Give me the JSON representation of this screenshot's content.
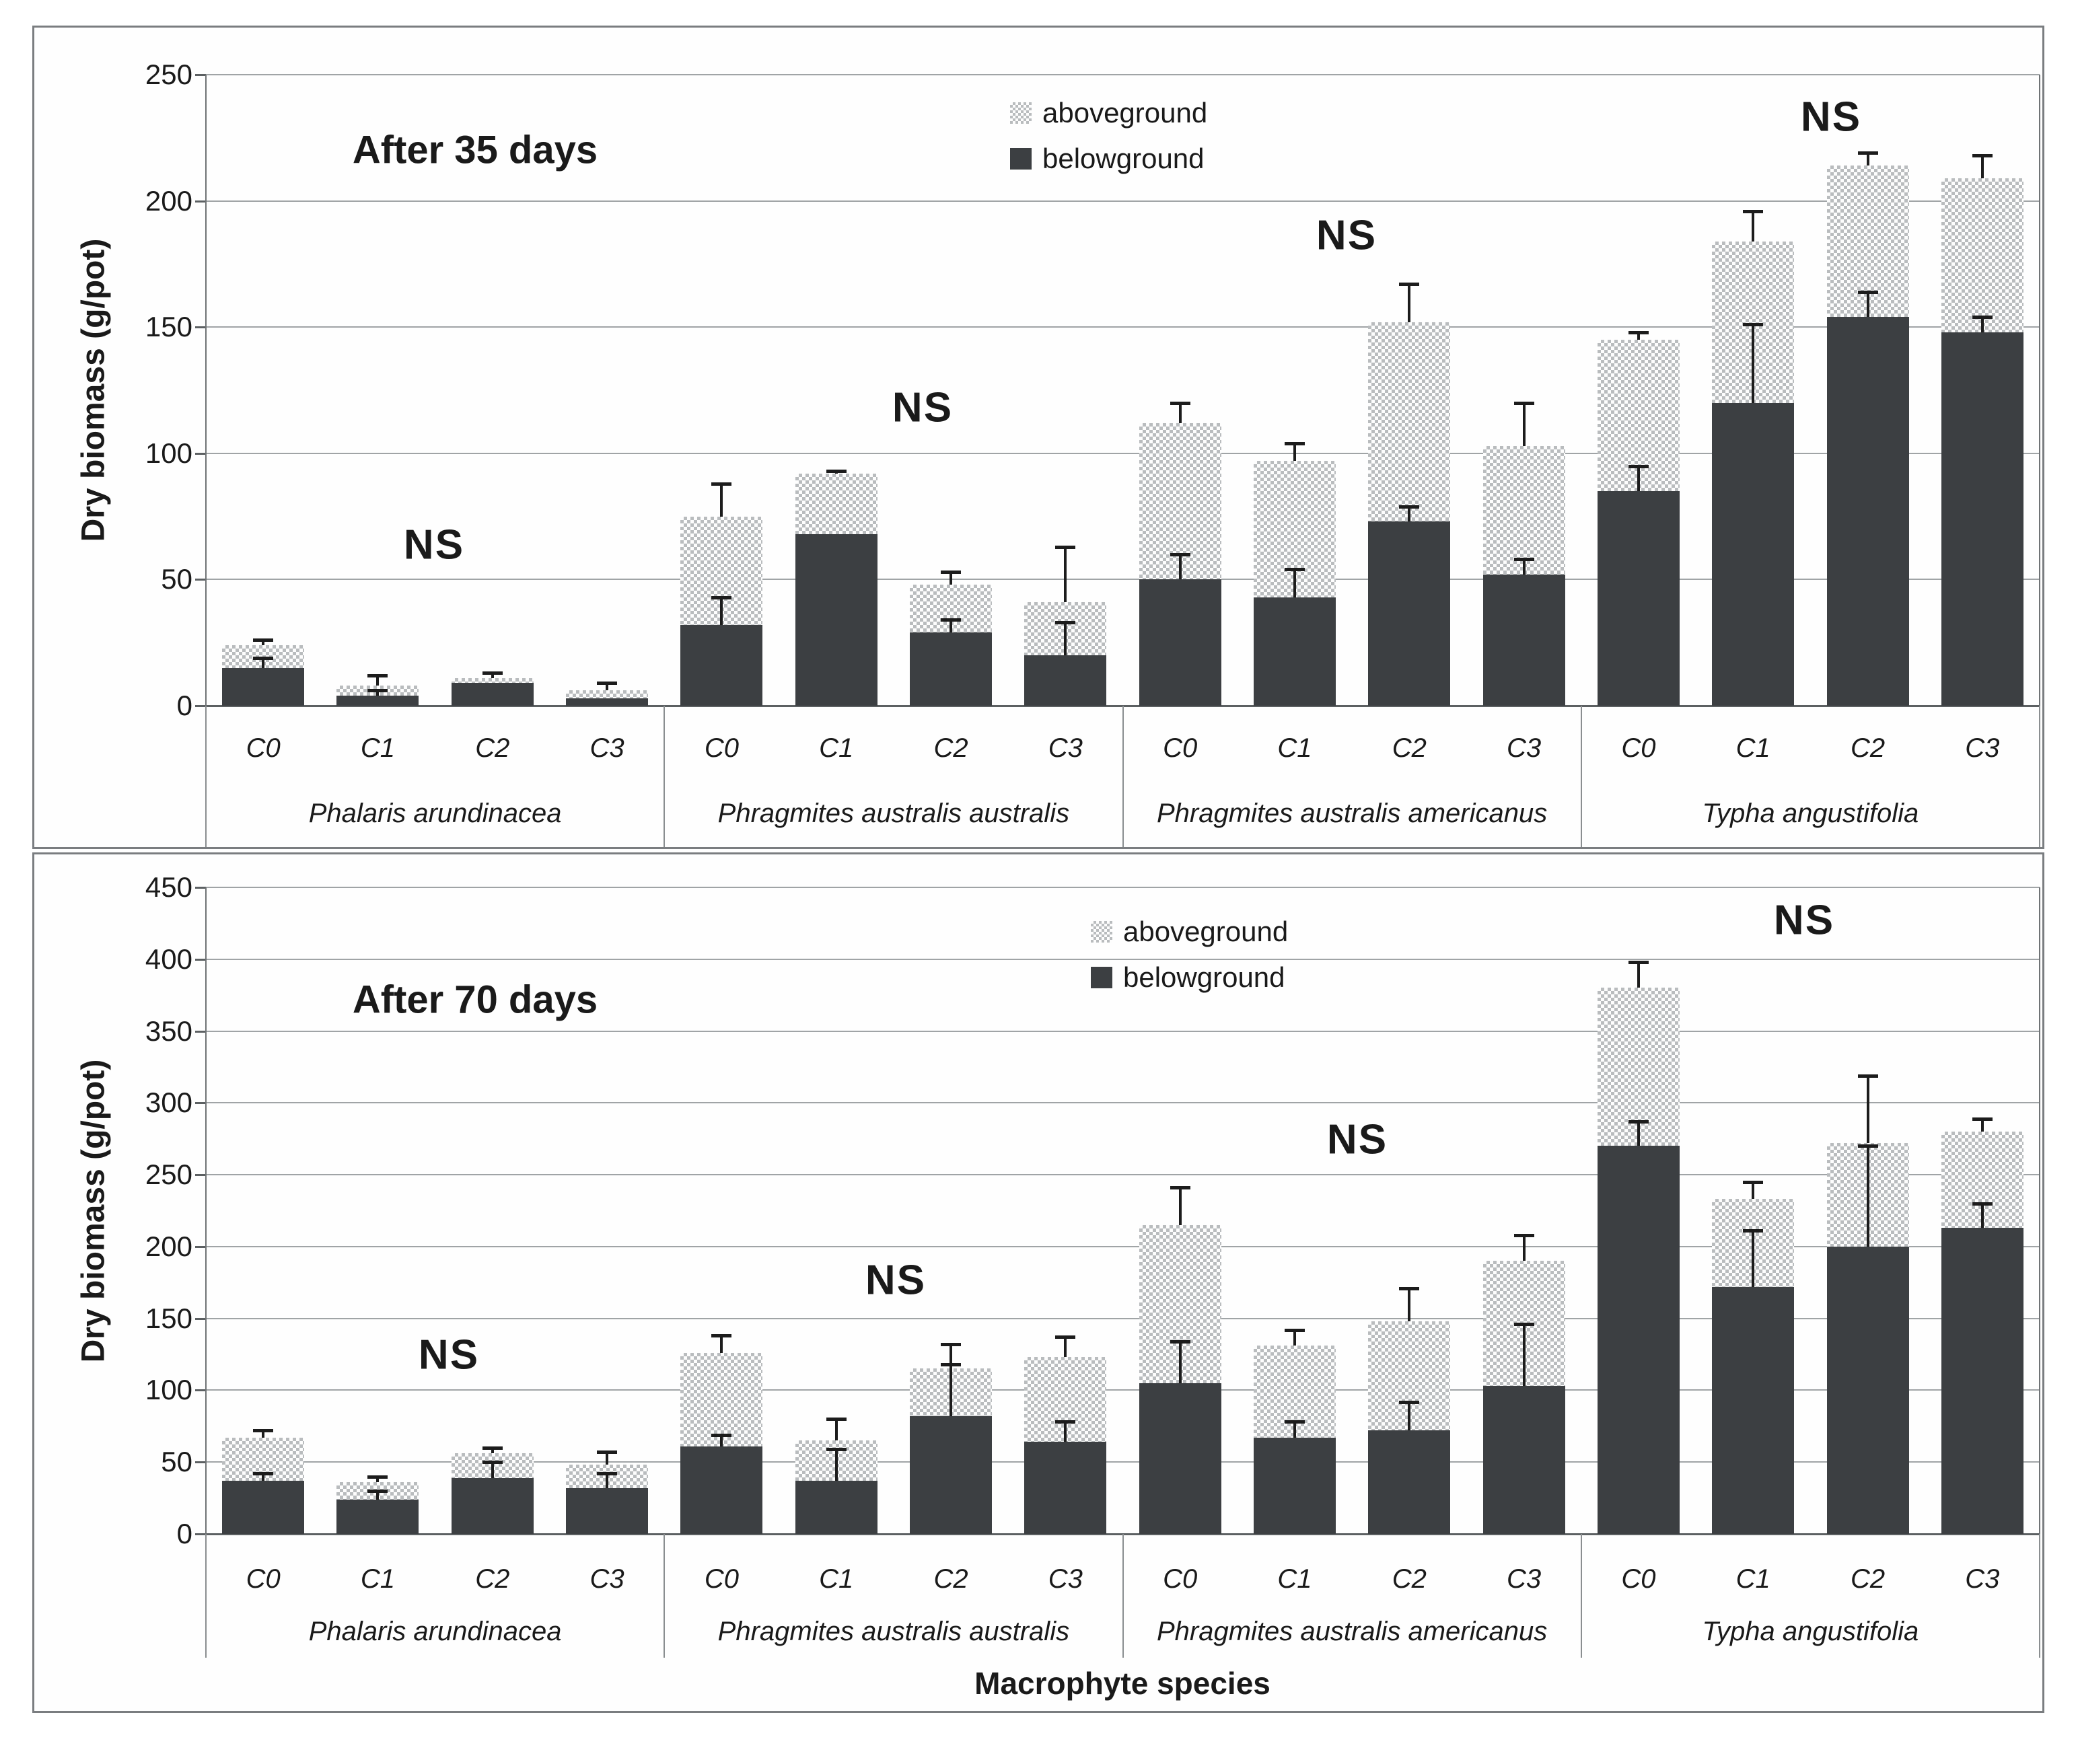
{
  "figure": {
    "x_axis_title": "Macrophyte species",
    "ns_label": "NS",
    "colors": {
      "belowground": "#3c3f42",
      "aboveground_hatch_dot": "#b9bcbe",
      "gridline": "#a0a4a6",
      "axis": "#5c6062",
      "error_bar": "#1c1c1c",
      "panel_border": "#7a7d80",
      "text": "#1a1a1a"
    }
  },
  "chart_data": [
    {
      "type": "bar",
      "stacked": true,
      "title": "After 35 days",
      "ylabel": "Dry biomass (g/pot)",
      "xlabel": "",
      "ylim": [
        0,
        250
      ],
      "y_tick_step": 50,
      "grid": true,
      "legend_position": "top-center-inside",
      "legend": [
        {
          "label": "aboveground",
          "style": "hatch"
        },
        {
          "label": "belowground",
          "style": "solid"
        }
      ],
      "categories": [
        "C0",
        "C1",
        "C2",
        "C3"
      ],
      "units": "g/pot",
      "groups": [
        {
          "species": "Phalaris arundinacea",
          "ns": "NS",
          "bars": [
            {
              "label": "C0",
              "belowground": 15,
              "aboveground": 9,
              "err_below_top": 19,
              "err_total_top": 26
            },
            {
              "label": "C1",
              "belowground": 4,
              "aboveground": 4,
              "err_below_top": 6,
              "err_total_top": 12
            },
            {
              "label": "C2",
              "belowground": 9,
              "aboveground": 2,
              "err_below_top": null,
              "err_total_top": 13
            },
            {
              "label": "C3",
              "belowground": 3,
              "aboveground": 3,
              "err_below_top": null,
              "err_total_top": 9
            }
          ]
        },
        {
          "species": "Phragmites australis australis",
          "ns": "NS",
          "bars": [
            {
              "label": "C0",
              "belowground": 32,
              "aboveground": 43,
              "err_below_top": 43,
              "err_total_top": 88
            },
            {
              "label": "C1",
              "belowground": 68,
              "aboveground": 24,
              "err_below_top": null,
              "err_total_top": 93
            },
            {
              "label": "C2",
              "belowground": 29,
              "aboveground": 19,
              "err_below_top": 34,
              "err_total_top": 53
            },
            {
              "label": "C3",
              "belowground": 20,
              "aboveground": 21,
              "err_below_top": 33,
              "err_total_top": 63
            }
          ]
        },
        {
          "species": "Phragmites australis americanus",
          "ns": "NS",
          "bars": [
            {
              "label": "C0",
              "belowground": 50,
              "aboveground": 62,
              "err_below_top": 60,
              "err_total_top": 120
            },
            {
              "label": "C1",
              "belowground": 43,
              "aboveground": 54,
              "err_below_top": 54,
              "err_total_top": 104
            },
            {
              "label": "C2",
              "belowground": 73,
              "aboveground": 79,
              "err_below_top": 79,
              "err_total_top": 167
            },
            {
              "label": "C3",
              "belowground": 52,
              "aboveground": 51,
              "err_below_top": 58,
              "err_total_top": 120
            }
          ]
        },
        {
          "species": "Typha angustifolia",
          "ns": "NS",
          "bars": [
            {
              "label": "C0",
              "belowground": 85,
              "aboveground": 60,
              "err_below_top": 95,
              "err_total_top": 148
            },
            {
              "label": "C1",
              "belowground": 120,
              "aboveground": 64,
              "err_below_top": 151,
              "err_total_top": 196
            },
            {
              "label": "C2",
              "belowground": 154,
              "aboveground": 60,
              "err_below_top": 164,
              "err_total_top": 219
            },
            {
              "label": "C3",
              "belowground": 148,
              "aboveground": 61,
              "err_below_top": 154,
              "err_total_top": 218
            }
          ]
        }
      ]
    },
    {
      "type": "bar",
      "stacked": true,
      "title": "After 70 days",
      "ylabel": "Dry biomass (g/pot)",
      "xlabel": "Macrophyte species",
      "ylim": [
        0,
        450
      ],
      "y_tick_step": 50,
      "grid": true,
      "legend_position": "top-center-inside",
      "legend": [
        {
          "label": "aboveground",
          "style": "hatch"
        },
        {
          "label": "belowground",
          "style": "solid"
        }
      ],
      "categories": [
        "C0",
        "C1",
        "C2",
        "C3"
      ],
      "units": "g/pot",
      "groups": [
        {
          "species": "Phalaris arundinacea",
          "ns": "NS",
          "bars": [
            {
              "label": "C0",
              "belowground": 37,
              "aboveground": 30,
              "err_below_top": 42,
              "err_total_top": 72
            },
            {
              "label": "C1",
              "belowground": 24,
              "aboveground": 12,
              "err_below_top": 30,
              "err_total_top": 40
            },
            {
              "label": "C2",
              "belowground": 39,
              "aboveground": 17,
              "err_below_top": 50,
              "err_total_top": 60
            },
            {
              "label": "C3",
              "belowground": 32,
              "aboveground": 16,
              "err_below_top": 42,
              "err_total_top": 57
            }
          ]
        },
        {
          "species": "Phragmites australis australis",
          "ns": "NS",
          "bars": [
            {
              "label": "C0",
              "belowground": 61,
              "aboveground": 65,
              "err_below_top": 69,
              "err_total_top": 138
            },
            {
              "label": "C1",
              "belowground": 37,
              "aboveground": 28,
              "err_below_top": 59,
              "err_total_top": 80
            },
            {
              "label": "C2",
              "belowground": 82,
              "aboveground": 33,
              "err_below_top": 118,
              "err_total_top": 132
            },
            {
              "label": "C3",
              "belowground": 64,
              "aboveground": 59,
              "err_below_top": 78,
              "err_total_top": 137
            }
          ]
        },
        {
          "species": "Phragmites australis americanus",
          "ns": "NS",
          "bars": [
            {
              "label": "C0",
              "belowground": 105,
              "aboveground": 110,
              "err_below_top": 134,
              "err_total_top": 241
            },
            {
              "label": "C1",
              "belowground": 67,
              "aboveground": 64,
              "err_below_top": 78,
              "err_total_top": 142
            },
            {
              "label": "C2",
              "belowground": 72,
              "aboveground": 76,
              "err_below_top": 92,
              "err_total_top": 171
            },
            {
              "label": "C3",
              "belowground": 103,
              "aboveground": 87,
              "err_below_top": 146,
              "err_total_top": 208
            }
          ]
        },
        {
          "species": "Typha angustifolia",
          "ns": "NS",
          "bars": [
            {
              "label": "C0",
              "belowground": 270,
              "aboveground": 110,
              "err_below_top": 287,
              "err_total_top": 398
            },
            {
              "label": "C1",
              "belowground": 172,
              "aboveground": 61,
              "err_below_top": 211,
              "err_total_top": 245
            },
            {
              "label": "C2",
              "belowground": 200,
              "aboveground": 72,
              "err_below_top": 270,
              "err_total_top": 319
            },
            {
              "label": "C3",
              "belowground": 213,
              "aboveground": 67,
              "err_below_top": 230,
              "err_total_top": 289
            }
          ]
        }
      ]
    }
  ]
}
